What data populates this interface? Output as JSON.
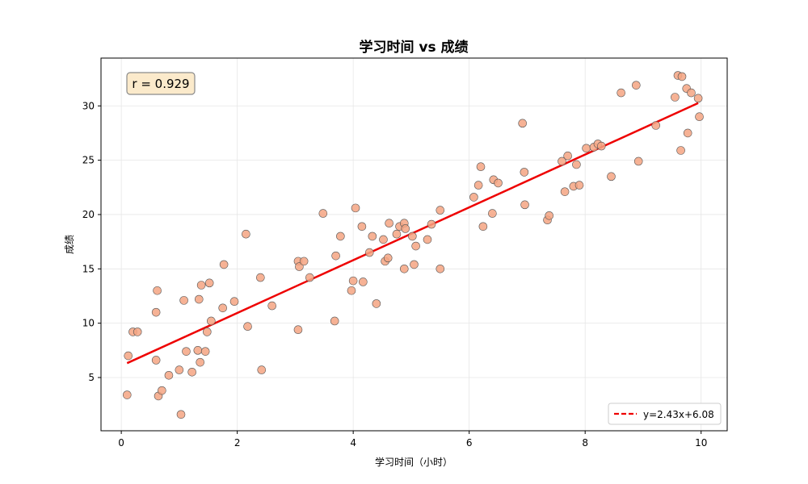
{
  "chart_data": {
    "type": "scatter",
    "title": "学习时间 vs 成绩",
    "xlabel": "学习时间（小时）",
    "ylabel": "成绩",
    "xlim": [
      -0.35,
      10.45
    ],
    "ylim": [
      0.1,
      34.4
    ],
    "xticks": [
      0,
      2,
      4,
      6,
      8,
      10
    ],
    "yticks": [
      5,
      10,
      15,
      20,
      25,
      30
    ],
    "grid": true,
    "colors": {
      "point_fill": "#f4a582",
      "point_edge": "#555555",
      "fit_line": "#ee0000",
      "annotation_fill": "#fbeacb",
      "annotation_edge": "#8a8a8a"
    },
    "annotation": {
      "text": "r = 0.929",
      "position": "top-left"
    },
    "legend": {
      "position": "lower-right",
      "entries": [
        "y=2.43x+6.08"
      ]
    },
    "fit": {
      "slope": 2.43,
      "intercept": 6.08,
      "x_range": [
        0.1,
        9.95
      ]
    },
    "points": [
      [
        0.1,
        3.4
      ],
      [
        0.12,
        7.0
      ],
      [
        0.2,
        9.2
      ],
      [
        0.28,
        9.2
      ],
      [
        0.6,
        6.6
      ],
      [
        0.6,
        11.0
      ],
      [
        0.62,
        13.0
      ],
      [
        0.64,
        3.3
      ],
      [
        0.7,
        3.8
      ],
      [
        0.82,
        5.2
      ],
      [
        1.0,
        5.7
      ],
      [
        1.03,
        1.6
      ],
      [
        1.08,
        12.1
      ],
      [
        1.12,
        7.4
      ],
      [
        1.22,
        5.5
      ],
      [
        1.32,
        7.5
      ],
      [
        1.34,
        12.2
      ],
      [
        1.36,
        6.4
      ],
      [
        1.38,
        13.5
      ],
      [
        1.45,
        7.4
      ],
      [
        1.48,
        9.2
      ],
      [
        1.52,
        13.7
      ],
      [
        1.55,
        10.2
      ],
      [
        1.75,
        11.4
      ],
      [
        1.77,
        15.4
      ],
      [
        1.95,
        12.0
      ],
      [
        2.15,
        18.2
      ],
      [
        2.18,
        9.7
      ],
      [
        2.4,
        14.2
      ],
      [
        2.42,
        5.7
      ],
      [
        2.6,
        11.6
      ],
      [
        3.05,
        9.4
      ],
      [
        3.05,
        15.7
      ],
      [
        3.07,
        15.2
      ],
      [
        3.15,
        15.7
      ],
      [
        3.25,
        14.2
      ],
      [
        3.48,
        20.1
      ],
      [
        3.68,
        10.2
      ],
      [
        3.7,
        16.2
      ],
      [
        3.78,
        18.0
      ],
      [
        3.97,
        13.0
      ],
      [
        4.0,
        13.9
      ],
      [
        4.04,
        20.6
      ],
      [
        4.15,
        18.9
      ],
      [
        4.17,
        13.8
      ],
      [
        4.28,
        16.5
      ],
      [
        4.33,
        18.0
      ],
      [
        4.4,
        11.8
      ],
      [
        4.52,
        17.7
      ],
      [
        4.55,
        15.7
      ],
      [
        4.6,
        16.0
      ],
      [
        4.62,
        19.2
      ],
      [
        4.75,
        18.2
      ],
      [
        4.8,
        18.9
      ],
      [
        4.88,
        15.0
      ],
      [
        4.88,
        19.2
      ],
      [
        4.9,
        18.7
      ],
      [
        5.02,
        18.0
      ],
      [
        5.05,
        15.4
      ],
      [
        5.08,
        17.1
      ],
      [
        5.28,
        17.7
      ],
      [
        5.35,
        19.1
      ],
      [
        5.5,
        15.0
      ],
      [
        5.5,
        20.4
      ],
      [
        6.08,
        21.6
      ],
      [
        6.16,
        22.7
      ],
      [
        6.2,
        24.4
      ],
      [
        6.24,
        18.9
      ],
      [
        6.4,
        20.1
      ],
      [
        6.42,
        23.2
      ],
      [
        6.5,
        22.9
      ],
      [
        6.92,
        28.4
      ],
      [
        6.95,
        23.9
      ],
      [
        6.96,
        20.9
      ],
      [
        7.35,
        19.5
      ],
      [
        7.38,
        19.9
      ],
      [
        7.6,
        24.9
      ],
      [
        7.65,
        22.1
      ],
      [
        7.7,
        25.4
      ],
      [
        7.8,
        22.6
      ],
      [
        7.85,
        24.6
      ],
      [
        7.9,
        22.7
      ],
      [
        8.02,
        26.1
      ],
      [
        8.15,
        26.2
      ],
      [
        8.22,
        26.5
      ],
      [
        8.28,
        26.3
      ],
      [
        8.45,
        23.5
      ],
      [
        8.62,
        31.2
      ],
      [
        8.88,
        31.9
      ],
      [
        8.92,
        24.9
      ],
      [
        9.22,
        28.2
      ],
      [
        9.55,
        30.8
      ],
      [
        9.6,
        32.8
      ],
      [
        9.65,
        25.9
      ],
      [
        9.67,
        32.7
      ],
      [
        9.75,
        31.6
      ],
      [
        9.77,
        27.5
      ],
      [
        9.83,
        31.2
      ],
      [
        9.95,
        30.7
      ],
      [
        9.97,
        29.0
      ]
    ]
  }
}
